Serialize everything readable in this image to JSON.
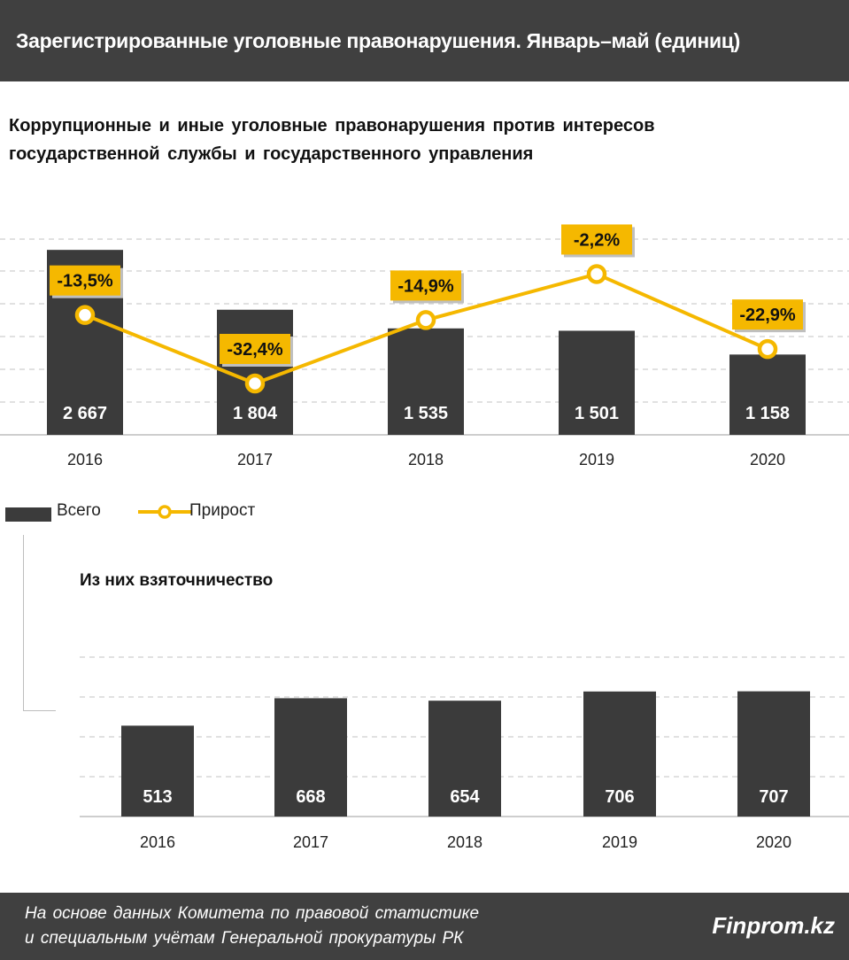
{
  "header": {
    "title": "Зарегистрированные уголовные правонарушения. Январь–май (единиц)"
  },
  "chart_data": [
    {
      "type": "bar",
      "title": "Коррупционные  и иные уголовные правонарушения  против интересов  государственной  службы  и государственного  управления",
      "categories": [
        "2016",
        "2017",
        "2018",
        "2019",
        "2020"
      ],
      "series": [
        {
          "name": "Всего",
          "type": "bar",
          "values": [
            2667,
            1804,
            1535,
            1501,
            1158
          ],
          "labels": [
            "2 667",
            "1 804",
            "1 535",
            "1 501",
            "1 158"
          ]
        },
        {
          "name": "Прирост",
          "type": "line",
          "values": [
            -13.5,
            -32.4,
            -14.9,
            -2.2,
            -22.9
          ],
          "labels": [
            "-13,5%",
            "-32,4%",
            "-14,9%",
            "-2,2%",
            "-22,9%"
          ]
        }
      ],
      "ylim": [
        0,
        3000
      ],
      "y2lim": [
        -50,
        5
      ],
      "grid": true,
      "legend": "bottom-left"
    },
    {
      "type": "bar",
      "title": "Из них взяточничество",
      "categories": [
        "2016",
        "2017",
        "2018",
        "2019",
        "2020"
      ],
      "series": [
        {
          "name": "",
          "values": [
            513,
            668,
            654,
            706,
            707
          ],
          "labels": [
            "513",
            "668",
            "654",
            "706",
            "707"
          ]
        }
      ],
      "ylim": [
        0,
        900
      ],
      "grid": true
    }
  ],
  "legend": {
    "bar_label": "Всего",
    "line_label": "Прирост"
  },
  "colors": {
    "bar": "#3b3b3b",
    "line": "#f5b800",
    "grid": "#cfcfcf",
    "header": "#404040"
  },
  "footer": {
    "source_line1": "На основе данных  Комитета по правовой  статистике",
    "source_line2": "и специальным  учётам Генеральной  прокуратуры РК",
    "brand": "Finprom.kz"
  }
}
